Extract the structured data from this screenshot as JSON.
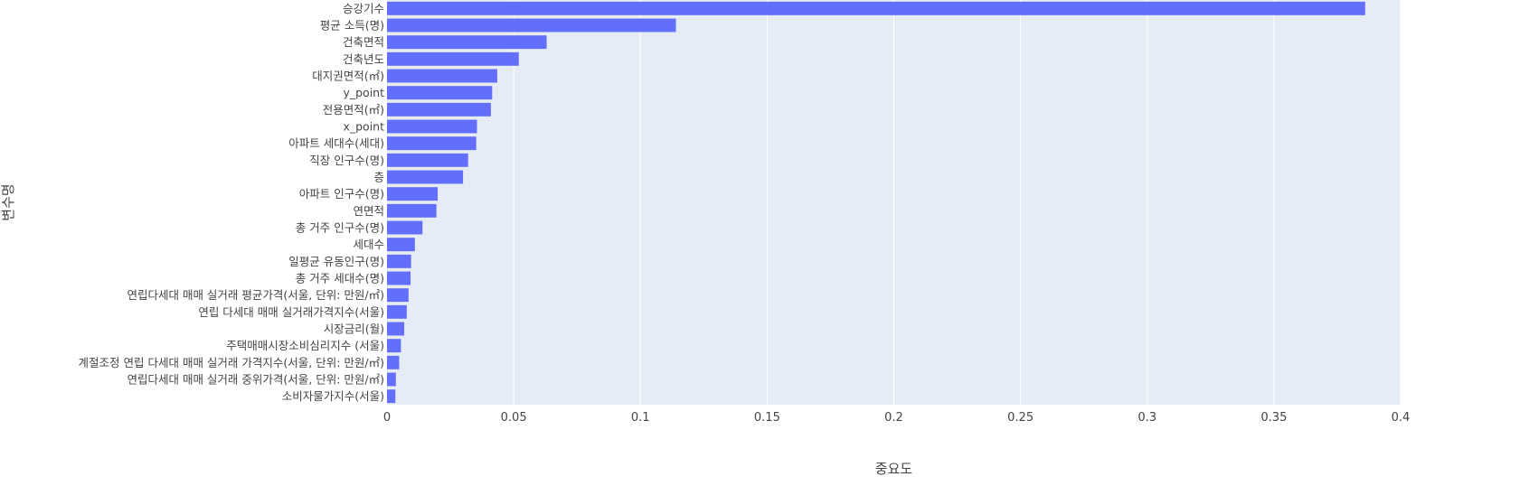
{
  "chart_data": {
    "type": "bar",
    "orientation": "horizontal",
    "title": "",
    "xlabel": "중요도",
    "ylabel": "변수명",
    "xlim": [
      0,
      0.4
    ],
    "x_ticks": [
      0,
      0.05,
      0.1,
      0.15,
      0.2,
      0.25,
      0.3,
      0.35,
      0.4
    ],
    "x_tick_labels": [
      "0",
      "0.05",
      "0.1",
      "0.15",
      "0.2",
      "0.25",
      "0.3",
      "0.35",
      "0.4"
    ],
    "grid": true,
    "colors": {
      "bar": "#636efa",
      "plot_bg": "#e5ecf6",
      "grid": "#ffffff",
      "text": "#444444"
    },
    "categories": [
      "승강기수",
      "평균 소득(명)",
      "건축면적",
      "건축년도",
      "대지권면적(㎡)",
      "y_point",
      "전용면적(㎡)",
      "x_point",
      "아파트 세대수(세대)",
      "직장 인구수(명)",
      "층",
      "아파트 인구수(명)",
      "연면적",
      "총 거주 인구수(명)",
      "세대수",
      "일평균 유동인구(명)",
      "총 거주 세대수(명)",
      "연립다세대 매매 실거래 평균가격(서울, 단위: 만원/㎡)",
      "연립 다세대 매매 실거래가격지수(서울)",
      "시장금리(월)",
      "주택매매시장소비심리지수 (서울)",
      "계절조정 연립 다세대 매매 실거래 가격지수(서울, 단위: 만원/㎡)",
      "연립다세대 매매 실거래 중위가격(서울, 단위: 만원/㎡)",
      "소비자물가지수(서울)"
    ],
    "values": [
      0.386,
      0.114,
      0.063,
      0.052,
      0.0435,
      0.0415,
      0.041,
      0.0355,
      0.0352,
      0.032,
      0.03,
      0.02,
      0.0195,
      0.014,
      0.011,
      0.0095,
      0.0093,
      0.0085,
      0.0078,
      0.0068,
      0.0055,
      0.0048,
      0.0035,
      0.0033
    ]
  }
}
